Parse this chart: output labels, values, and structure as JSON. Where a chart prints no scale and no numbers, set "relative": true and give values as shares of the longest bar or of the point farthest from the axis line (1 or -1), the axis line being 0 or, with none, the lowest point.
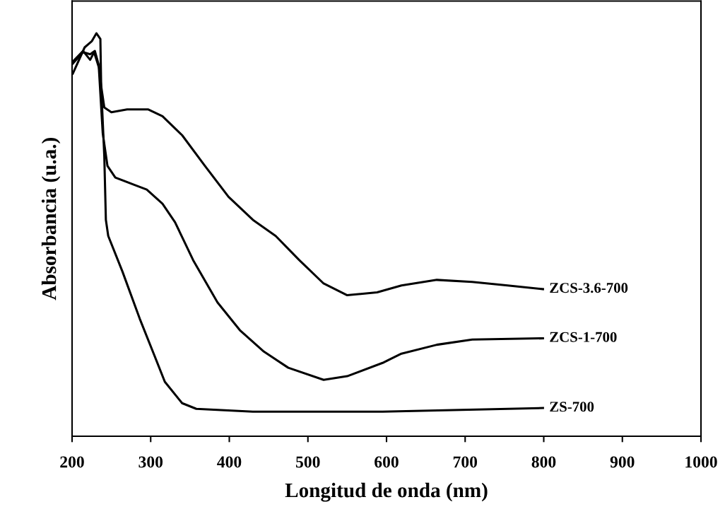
{
  "chart_data": {
    "type": "line",
    "xlabel": "Longitud de onda (nm)",
    "ylabel": "Absorbancia (u.a.)",
    "relative": true,
    "xlim": [
      200,
      1000
    ],
    "xticks": [
      200,
      300,
      400,
      500,
      600,
      700,
      800,
      900,
      1000
    ],
    "grid": false,
    "legend": false,
    "marker": "none",
    "line_style": "solid",
    "series": [
      {
        "name": "ZCS-3.6-700",
        "color": "#000000",
        "x": [
          201,
          216,
          225,
          231,
          236,
          237,
          241,
          250,
          270,
          297,
          315,
          340,
          369,
          399,
          430,
          459,
          489,
          520,
          550,
          588,
          619,
          664,
          709,
          754,
          799
        ],
        "values": [
          0.9,
          0.965,
          0.98,
          1.0,
          0.986,
          0.869,
          0.816,
          0.804,
          0.811,
          0.811,
          0.794,
          0.747,
          0.671,
          0.594,
          0.537,
          0.497,
          0.437,
          0.379,
          0.35,
          0.357,
          0.374,
          0.388,
          0.383,
          0.374,
          0.365
        ]
      },
      {
        "name": "ZCS-1-700",
        "color": "#000000",
        "x": [
          201,
          214,
          223,
          228,
          234,
          239,
          245,
          255,
          279,
          295,
          315,
          331,
          354,
          385,
          414,
          444,
          475,
          520,
          550,
          595,
          619,
          664,
          709,
          799
        ],
        "values": [
          0.93,
          0.956,
          0.934,
          0.953,
          0.916,
          0.752,
          0.671,
          0.642,
          0.624,
          0.612,
          0.577,
          0.531,
          0.437,
          0.332,
          0.262,
          0.21,
          0.17,
          0.14,
          0.149,
          0.182,
          0.205,
          0.227,
          0.24,
          0.243
        ]
      },
      {
        "name": "ZS-700",
        "color": "#000000",
        "x": [
          201,
          214,
          223,
          229,
          234,
          237,
          241,
          243,
          246,
          264,
          286,
          304,
          318,
          340,
          358,
          430,
          595,
          799
        ],
        "values": [
          0.925,
          0.953,
          0.948,
          0.956,
          0.921,
          0.869,
          0.694,
          0.537,
          0.497,
          0.409,
          0.292,
          0.204,
          0.135,
          0.082,
          0.068,
          0.061,
          0.061,
          0.07
        ]
      }
    ]
  }
}
